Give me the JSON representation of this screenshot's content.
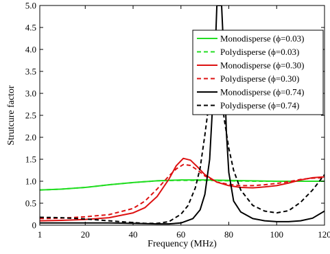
{
  "chart_data": {
    "type": "line",
    "title": "",
    "xlabel": "Frequency (MHz)",
    "ylabel": "Strutcure factor",
    "xlim": [
      1,
      120
    ],
    "ylim": [
      0,
      5
    ],
    "xticks": [
      1,
      20,
      40,
      60,
      80,
      100,
      120
    ],
    "xtick_labels": [
      "1",
      "20",
      "40",
      "60",
      "80",
      "100",
      "120"
    ],
    "yticks": [
      0,
      0.5,
      1,
      1.5,
      2,
      2.5,
      3,
      3.5,
      4,
      4.5,
      5
    ],
    "ytick_labels": [
      "0",
      "0.5",
      "1.0",
      "1.5",
      "2.0",
      "2.5",
      "3.0",
      "3.5",
      "4.0",
      "4.5",
      "5.0"
    ],
    "grid": false,
    "legend_position": "top-right",
    "series": [
      {
        "name": "Monodisperse (ϕ=0.03)",
        "color": "#22dd22",
        "dash": "solid",
        "x": [
          1,
          10,
          20,
          30,
          40,
          50,
          60,
          70,
          80,
          90,
          100,
          110,
          120
        ],
        "y": [
          0.8,
          0.82,
          0.86,
          0.92,
          0.97,
          1.01,
          1.03,
          1.03,
          1.02,
          1.01,
          1.0,
          1.0,
          1.0
        ]
      },
      {
        "name": "Polydisperse (ϕ=0.03)",
        "color": "#22dd22",
        "dash": "dashed",
        "x": [
          1,
          10,
          20,
          30,
          40,
          50,
          60,
          70,
          80,
          90,
          100,
          110,
          120
        ],
        "y": [
          0.8,
          0.82,
          0.86,
          0.92,
          0.97,
          1.01,
          1.02,
          1.02,
          1.01,
          1.0,
          1.0,
          1.0,
          1.0
        ]
      },
      {
        "name": "Monodisperse (ϕ=0.30)",
        "color": "#dd1111",
        "dash": "solid",
        "x": [
          1,
          10,
          20,
          30,
          40,
          45,
          50,
          55,
          58,
          61,
          64,
          67,
          70,
          75,
          80,
          85,
          90,
          95,
          100,
          105,
          110,
          115,
          120
        ],
        "y": [
          0.1,
          0.11,
          0.13,
          0.17,
          0.28,
          0.4,
          0.65,
          1.05,
          1.35,
          1.52,
          1.48,
          1.32,
          1.15,
          0.98,
          0.9,
          0.86,
          0.85,
          0.87,
          0.9,
          0.96,
          1.03,
          1.08,
          1.1
        ]
      },
      {
        "name": "Polydisperse (ϕ=0.30)",
        "color": "#dd1111",
        "dash": "dashed",
        "x": [
          1,
          10,
          20,
          30,
          40,
          45,
          50,
          55,
          58,
          61,
          64,
          67,
          70,
          75,
          80,
          85,
          90,
          95,
          100,
          105,
          110,
          115,
          120
        ],
        "y": [
          0.15,
          0.16,
          0.19,
          0.24,
          0.38,
          0.55,
          0.82,
          1.12,
          1.28,
          1.38,
          1.36,
          1.25,
          1.12,
          0.98,
          0.93,
          0.9,
          0.9,
          0.92,
          0.95,
          0.99,
          1.04,
          1.07,
          1.08
        ]
      },
      {
        "name": "Monodisperse (ϕ=0.74)",
        "color": "#000000",
        "dash": "solid",
        "x": [
          1,
          10,
          20,
          30,
          40,
          50,
          55,
          60,
          65,
          68,
          70,
          72,
          74,
          75,
          76,
          77,
          78,
          79,
          80,
          82,
          85,
          90,
          95,
          100,
          105,
          110,
          115,
          120
        ],
        "y": [
          0.05,
          0.05,
          0.05,
          0.05,
          0.04,
          0.03,
          0.03,
          0.05,
          0.15,
          0.35,
          0.7,
          1.5,
          3.5,
          5.0,
          5.0,
          5.0,
          3.8,
          2.1,
          1.2,
          0.55,
          0.3,
          0.15,
          0.1,
          0.08,
          0.08,
          0.1,
          0.16,
          0.32
        ]
      },
      {
        "name": "Polydisperse (ϕ=0.74)",
        "color": "#000000",
        "dash": "dashed",
        "x": [
          1,
          10,
          20,
          30,
          40,
          45,
          50,
          55,
          60,
          63,
          66,
          68,
          70,
          72,
          74,
          75,
          76,
          78,
          80,
          82,
          85,
          90,
          95,
          100,
          105,
          110,
          115,
          120
        ],
        "y": [
          0.18,
          0.17,
          0.14,
          0.1,
          0.06,
          0.04,
          0.04,
          0.08,
          0.25,
          0.45,
          0.85,
          1.3,
          2.05,
          2.9,
          3.6,
          3.75,
          3.45,
          2.45,
          1.75,
          1.25,
          0.8,
          0.45,
          0.32,
          0.28,
          0.33,
          0.52,
          0.8,
          1.15
        ]
      }
    ]
  }
}
